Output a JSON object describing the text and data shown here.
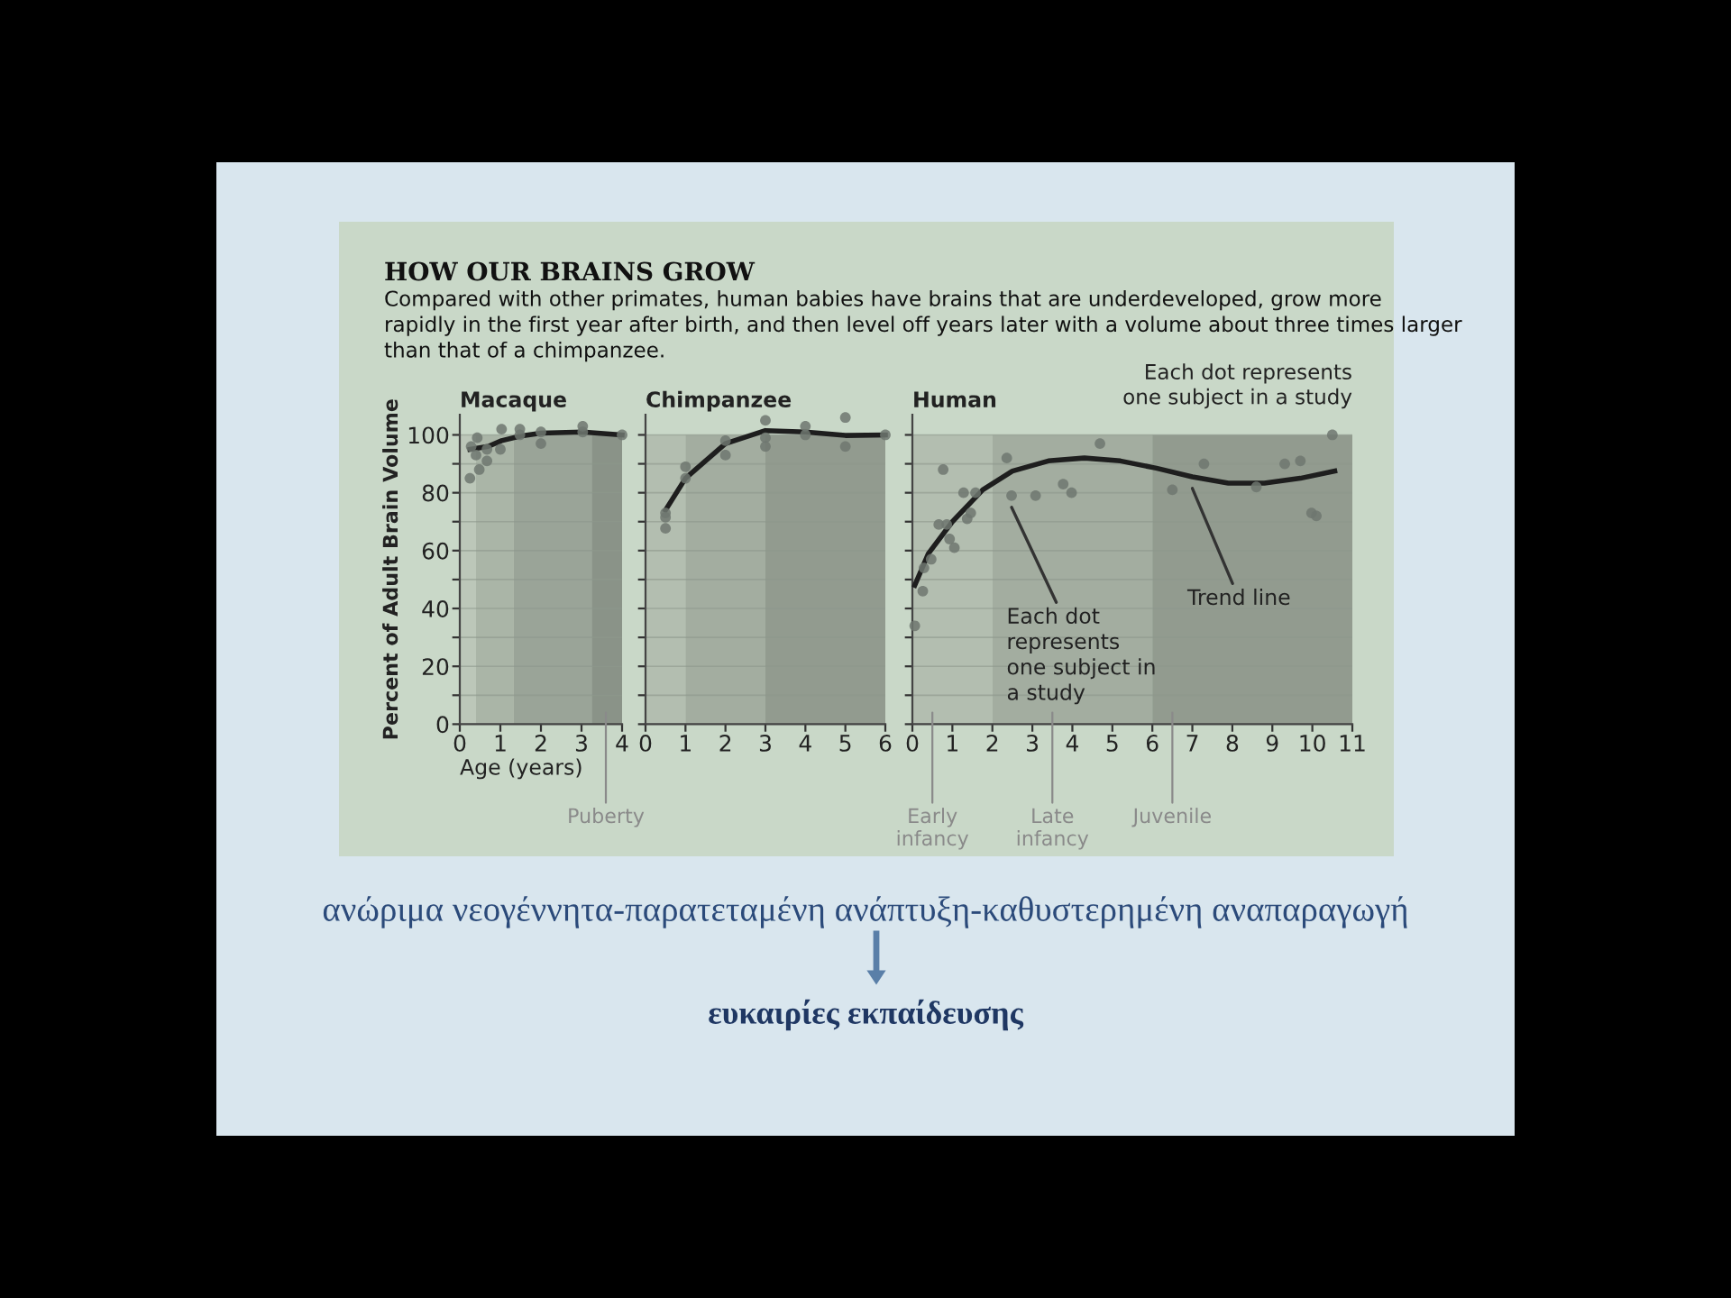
{
  "chart_data": [
    {
      "type": "scatter",
      "title": "Macaque",
      "xlabel": "Age (years)",
      "ylabel": "Percent of Adult Brain Volume",
      "xlim": [
        0,
        4
      ],
      "xticks": [
        0,
        1,
        2,
        3,
        4
      ],
      "ylim": [
        0,
        107
      ],
      "yticks": [
        0,
        {
          "value": 10,
          "label": null
        },
        20,
        {
          "value": 30,
          "label": null
        },
        40,
        {
          "value": 50,
          "label": null
        },
        60,
        {
          "value": 70,
          "label": null
        },
        80,
        {
          "value": 90,
          "label": null
        },
        100
      ],
      "grid": "y",
      "series": [
        {
          "type": "scatter",
          "color": "#6f7770",
          "x": [
            0.25,
            0.28,
            0.43,
            0.4,
            0.48,
            0.67,
            0.67,
            1.0,
            1.03,
            1.48,
            1.48,
            2.0,
            2.0,
            3.03,
            3.03,
            4.0
          ],
          "values": [
            85,
            96,
            99,
            93,
            88,
            95,
            91,
            95,
            102,
            100,
            102,
            101,
            97,
            103,
            101,
            100
          ]
        },
        {
          "type": "line",
          "color": "#1e1e1e",
          "x": [
            0.25,
            0.7,
            1.03,
            1.5,
            2.0,
            3.03,
            4.0
          ],
          "values": [
            95,
            96,
            98,
            99.6,
            100.6,
            101,
            100
          ]
        }
      ],
      "bands": [
        {
          "axis": "x",
          "from": 0,
          "to": 0.4,
          "color": "#bcc7b9"
        },
        {
          "axis": "x",
          "from": 0.4,
          "to": 1.33,
          "color": "#aab5a7"
        },
        {
          "axis": "x",
          "from": 1.33,
          "to": 3.25,
          "color": "#9aa498"
        },
        {
          "axis": "x",
          "from": 3.25,
          "to": 4,
          "color": "#8a9388"
        }
      ],
      "annotations": [
        {
          "text": "Puberty",
          "x": 3.6,
          "y": 0
        },
        "HOW OUR BRAINS GROW",
        "Compared with other primates, human babies have brains that are underdeveloped, grow more\nrapidly in the first year after birth, and then level off years later with a volume about three times larger\nthan that of a chimpanzee.",
        "ανώριμα νεογέννητα-παρατεταμένη ανάπτυξη-καθυστερημένη αναπαραγωγή",
        "ευκαιρίες εκπαίδευσης"
      ]
    },
    {
      "type": "scatter",
      "title": "Chimpanzee",
      "tick_labels": "x",
      "xlim": [
        0,
        6
      ],
      "xticks": [
        0,
        1,
        2,
        3,
        4,
        5,
        6
      ],
      "ylim": [
        0,
        107
      ],
      "yticks": [
        0,
        {
          "value": 10,
          "label": null
        },
        {
          "value": 20,
          "label": null
        },
        {
          "value": 30,
          "label": null
        },
        {
          "value": 40,
          "label": null
        },
        {
          "value": 50,
          "label": null
        },
        {
          "value": 60,
          "label": null
        },
        {
          "value": 70,
          "label": null
        },
        {
          "value": 80,
          "label": null
        },
        {
          "value": 90,
          "label": null
        },
        {
          "value": 100,
          "label": null
        }
      ],
      "grid": "y",
      "series": [
        {
          "type": "scatter",
          "color": "#6f7770",
          "x": [
            0.5,
            0.5,
            0.5,
            1,
            1,
            2,
            2,
            3,
            3,
            3,
            4,
            4,
            5,
            5,
            6
          ],
          "values": [
            73,
            71.5,
            67.7,
            89,
            85,
            98,
            93,
            105,
            99,
            96,
            103,
            100,
            106,
            96,
            100
          ]
        },
        {
          "type": "line",
          "color": "#1e1e1e",
          "x": [
            0.5,
            1,
            2,
            3,
            4,
            5,
            6
          ],
          "values": [
            74,
            85,
            97,
            101.5,
            101,
            99.8,
            100
          ]
        }
      ],
      "bands": [
        {
          "axis": "x",
          "from": 0,
          "to": 1,
          "color": "#b3beb0"
        },
        {
          "axis": "x",
          "from": 1,
          "to": 3,
          "color": "#a3ada0"
        },
        {
          "axis": "x",
          "from": 3,
          "to": 6,
          "color": "#929b8f"
        }
      ]
    },
    {
      "type": "scatter",
      "title": "Human",
      "tick_labels": "x",
      "xlim": [
        0,
        11
      ],
      "xticks": [
        0,
        1,
        2,
        3,
        4,
        5,
        6,
        7,
        8,
        9,
        10,
        11
      ],
      "ylim": [
        0,
        107
      ],
      "yticks": [
        0,
        {
          "value": 10,
          "label": null
        },
        {
          "value": 20,
          "label": null
        },
        {
          "value": 30,
          "label": null
        },
        {
          "value": 40,
          "label": null
        },
        {
          "value": 50,
          "label": null
        },
        {
          "value": 60,
          "label": null
        },
        {
          "value": 70,
          "label": null
        },
        {
          "value": 80,
          "label": null
        },
        {
          "value": 90,
          "label": null
        },
        {
          "value": 100,
          "label": null
        }
      ],
      "grid": "y",
      "series": [
        {
          "type": "scatter",
          "color": "#6f7770",
          "x": [
            0.06,
            0.26,
            0.29,
            0.47,
            0.66,
            0.86,
            0.77,
            0.93,
            1.05,
            1.28,
            1.37,
            1.46,
            1.58,
            2.36,
            2.48,
            3.08,
            3.77,
            3.98,
            4.69,
            6.5,
            7.29,
            8.6,
            9.31,
            9.7,
            9.98,
            10.1,
            10.5
          ],
          "values": [
            34,
            46,
            54,
            57,
            69,
            69,
            88,
            64,
            61,
            80,
            71,
            73,
            80,
            92,
            79,
            79,
            83,
            80,
            97,
            81,
            90,
            82,
            90,
            91,
            73,
            72,
            100
          ]
        },
        {
          "type": "line",
          "color": "#1e1e1e",
          "x": [
            0.06,
            0.4,
            1,
            1.76,
            2.5,
            3.4,
            4.3,
            5.2,
            6.1,
            7,
            7.9,
            8.8,
            9.7,
            10.56
          ],
          "values": [
            48,
            59,
            70,
            81,
            87.5,
            91,
            92,
            91,
            88.5,
            85.5,
            83.3,
            83.3,
            85,
            87.5
          ]
        }
      ],
      "bands": [
        {
          "axis": "x",
          "from": 0,
          "to": 2,
          "color": "#b3beb0"
        },
        {
          "axis": "x",
          "from": 2,
          "to": 6,
          "color": "#a3ada0"
        },
        {
          "axis": "x",
          "from": 6,
          "to": 11,
          "color": "#929b8f"
        }
      ],
      "annotations": [
        {
          "text": "Early\ninfancy",
          "x": 0.5,
          "y": 0
        },
        {
          "text": "Late\ninfancy",
          "x": 3.5,
          "y": 0
        },
        {
          "text": "Juvenile",
          "x": 6.5,
          "y": 0
        },
        {
          "text": "Each dot\nrepresents\none subject in\na study",
          "x": 2.48,
          "y": 79
        },
        {
          "text": "Trend line",
          "x": 7,
          "y": 85.5
        },
        "Each dot represents\none subject in a study"
      ]
    }
  ]
}
